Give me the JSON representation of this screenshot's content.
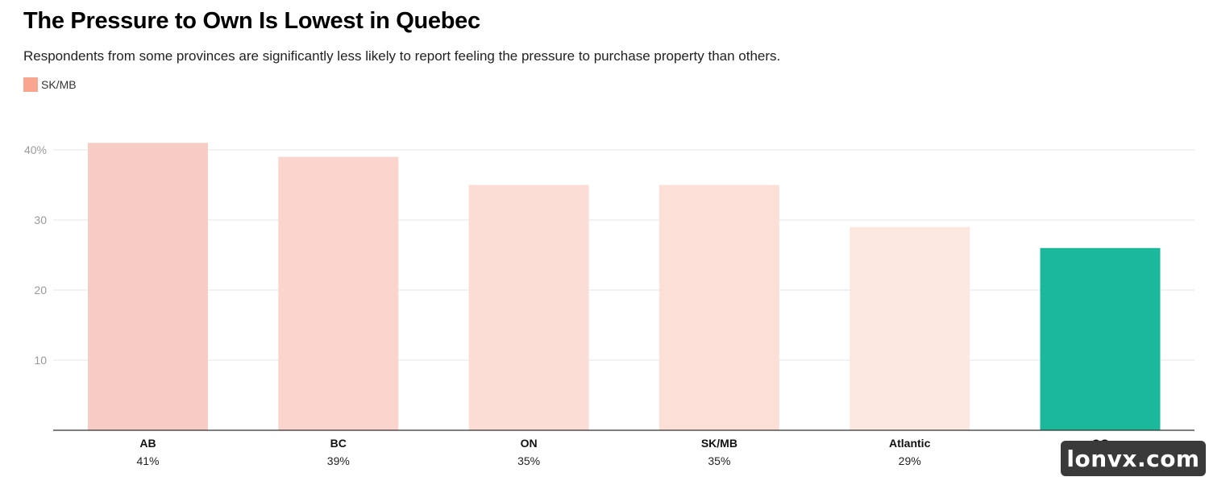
{
  "chart_data": {
    "type": "bar",
    "title": "The Pressure to Own Is Lowest in Quebec",
    "subtitle": "Respondents from some provinces are significantly less likely to report feeling the pressure to purchase property than others.",
    "legend": [
      {
        "label": "SK/MB",
        "color": "#f9a58f"
      }
    ],
    "categories": [
      "AB",
      "BC",
      "ON",
      "SK/MB",
      "Atlantic",
      "QC"
    ],
    "values": [
      41,
      39,
      35,
      35,
      29,
      26
    ],
    "value_labels": [
      "41%",
      "39%",
      "35%",
      "35%",
      "29%",
      ""
    ],
    "colors": [
      "#f7ccc4",
      "#fbd5cd",
      "#fcddd5",
      "#fce0d8",
      "#fde8e0",
      "#1cb89c"
    ],
    "yticks": [
      {
        "value": 10,
        "label": "10"
      },
      {
        "value": 20,
        "label": "20"
      },
      {
        "value": 30,
        "label": "30"
      },
      {
        "value": 40,
        "label": "40%"
      }
    ],
    "ylim": [
      0,
      45
    ],
    "xlabel": "",
    "ylabel": "",
    "grid": true,
    "legend_position": "top-left"
  },
  "watermark": {
    "text": "lonvx.com"
  }
}
